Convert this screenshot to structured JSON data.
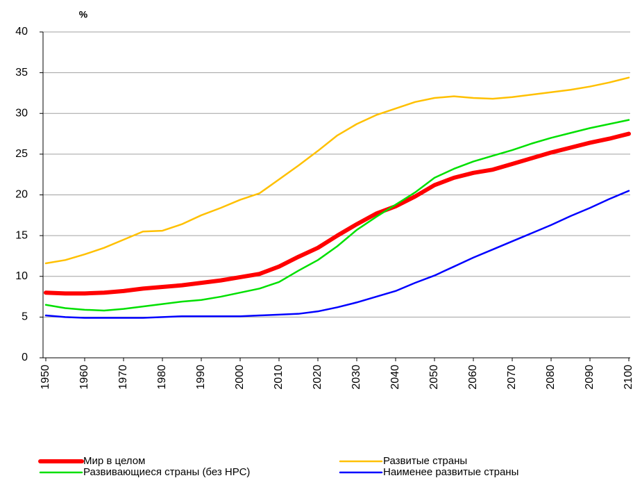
{
  "chart_data": {
    "type": "line",
    "y_label": "%",
    "x": [
      1950,
      1955,
      1960,
      1965,
      1970,
      1975,
      1980,
      1985,
      1990,
      1995,
      2000,
      2005,
      2010,
      2015,
      2020,
      2025,
      2030,
      2035,
      2040,
      2045,
      2050,
      2055,
      2060,
      2065,
      2070,
      2075,
      2080,
      2085,
      2090,
      2095,
      2100
    ],
    "xlim": [
      1950,
      2100
    ],
    "xticks": [
      1950,
      1960,
      1970,
      1980,
      1990,
      2000,
      2010,
      2020,
      2030,
      2040,
      2050,
      2060,
      2070,
      2080,
      2090,
      2100
    ],
    "ylim": [
      0,
      40
    ],
    "yticks": [
      0,
      5,
      10,
      15,
      20,
      25,
      30,
      35,
      40
    ],
    "grid": true,
    "legend": "bottom",
    "series": [
      {
        "name": "Мир в целом",
        "color": "#ff0000",
        "values": [
          8.0,
          7.9,
          7.9,
          8.0,
          8.2,
          8.5,
          8.7,
          8.9,
          9.2,
          9.5,
          9.9,
          10.3,
          11.2,
          12.4,
          13.5,
          15.0,
          16.4,
          17.7,
          18.6,
          19.8,
          21.2,
          22.1,
          22.7,
          23.1,
          23.8,
          24.5,
          25.2,
          25.8,
          26.4,
          26.9,
          27.5
        ]
      },
      {
        "name": "Развитые страны",
        "color": "#ffc000",
        "values": [
          11.6,
          12.0,
          12.7,
          13.5,
          14.5,
          15.5,
          15.6,
          16.4,
          17.5,
          18.4,
          19.4,
          20.2,
          21.9,
          23.6,
          25.4,
          27.3,
          28.7,
          29.8,
          30.6,
          31.4,
          31.9,
          32.1,
          31.9,
          31.8,
          32.0,
          32.3,
          32.6,
          32.9,
          33.3,
          33.8,
          34.4
        ]
      },
      {
        "name": "Развивающиеся  страны (без НРС)",
        "color": "#00e000",
        "values": [
          6.5,
          6.1,
          5.9,
          5.8,
          6.0,
          6.3,
          6.6,
          6.9,
          7.1,
          7.5,
          8.0,
          8.5,
          9.3,
          10.7,
          12.0,
          13.7,
          15.7,
          17.3,
          18.8,
          20.3,
          22.1,
          23.2,
          24.1,
          24.8,
          25.5,
          26.3,
          27.0,
          27.6,
          28.2,
          28.7,
          29.2
        ]
      },
      {
        "name": "Наименее  развитые страны",
        "color": "#0000ff",
        "values": [
          5.2,
          5.0,
          4.9,
          4.9,
          4.9,
          4.9,
          5.0,
          5.1,
          5.1,
          5.1,
          5.1,
          5.2,
          5.3,
          5.4,
          5.7,
          6.2,
          6.8,
          7.5,
          8.2,
          9.2,
          10.1,
          11.2,
          12.3,
          13.3,
          14.3,
          15.3,
          16.3,
          17.4,
          18.4,
          19.5,
          20.5
        ]
      }
    ]
  }
}
